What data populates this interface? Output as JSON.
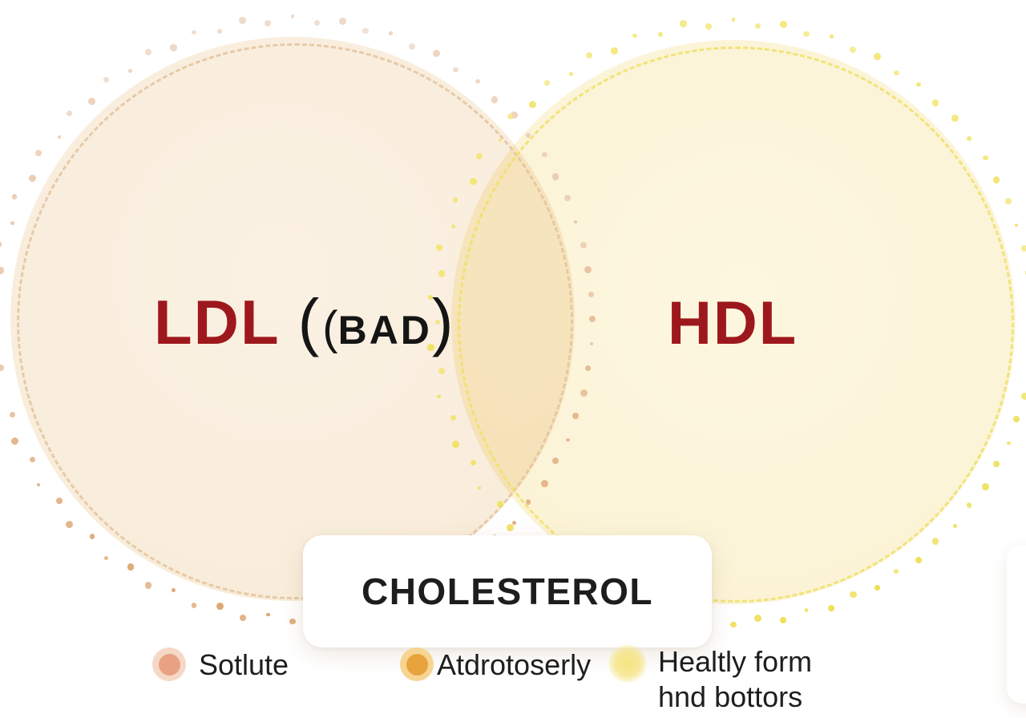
{
  "diagram": {
    "label_color": "#9d181c",
    "left_circle": {
      "label": "LDL",
      "suffix_open": "(",
      "suffix_inner_open": "(",
      "suffix_bad": "BAD",
      "suffix_close": ")",
      "fill": "#f9eedd",
      "dash_ring_color": "#e5c49e",
      "dot_color_top": "#efd9c9",
      "dot_color_bottom": "#dea670"
    },
    "right_circle": {
      "label": "HDL",
      "fill": "#fcf4d8",
      "dash_ring_color": "#f0e167",
      "dot_color_top": "#f4e87f",
      "dot_color_bottom": "#eedf55"
    },
    "title_card": {
      "text": "CHOLESTEROL"
    }
  },
  "legend": {
    "items": [
      {
        "label": "Sotlute",
        "label2": "",
        "dot": "#e9a184",
        "halo": "#f6d8c6"
      },
      {
        "label": "Atdrotoserly",
        "label2": "",
        "dot": "#e8a33d",
        "halo": "#f6d492"
      },
      {
        "label": "Healtly form",
        "label2": "hnd bottors",
        "dot": "#f5e482",
        "halo": "#fdf6d0"
      }
    ]
  }
}
